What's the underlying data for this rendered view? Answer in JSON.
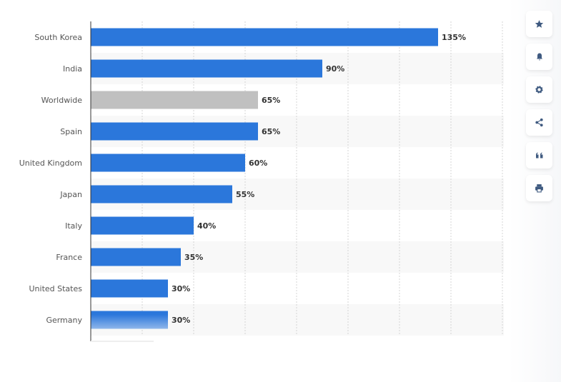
{
  "chart_data": {
    "type": "bar",
    "orientation": "horizontal",
    "categories": [
      "South Korea",
      "India",
      "Worldwide",
      "Spain",
      "United Kingdom",
      "Japan",
      "Italy",
      "France",
      "United States",
      "Germany"
    ],
    "values": [
      135,
      90,
      65,
      65,
      60,
      55,
      40,
      35,
      30,
      30
    ],
    "value_labels": [
      "135%",
      "90%",
      "65%",
      "65%",
      "60%",
      "55%",
      "40%",
      "35%",
      "30%",
      "30%"
    ],
    "xlim": [
      0,
      160
    ],
    "grid": true,
    "colors": {
      "default": "#2b77db",
      "highlight": "#c0c0c0"
    },
    "highlight_category": "Worldwide"
  },
  "sidebar": {
    "buttons": [
      {
        "icon": "star-icon"
      },
      {
        "icon": "bell-icon"
      },
      {
        "icon": "gear-icon"
      },
      {
        "icon": "share-icon"
      },
      {
        "icon": "quote-icon"
      },
      {
        "icon": "print-icon"
      }
    ]
  }
}
